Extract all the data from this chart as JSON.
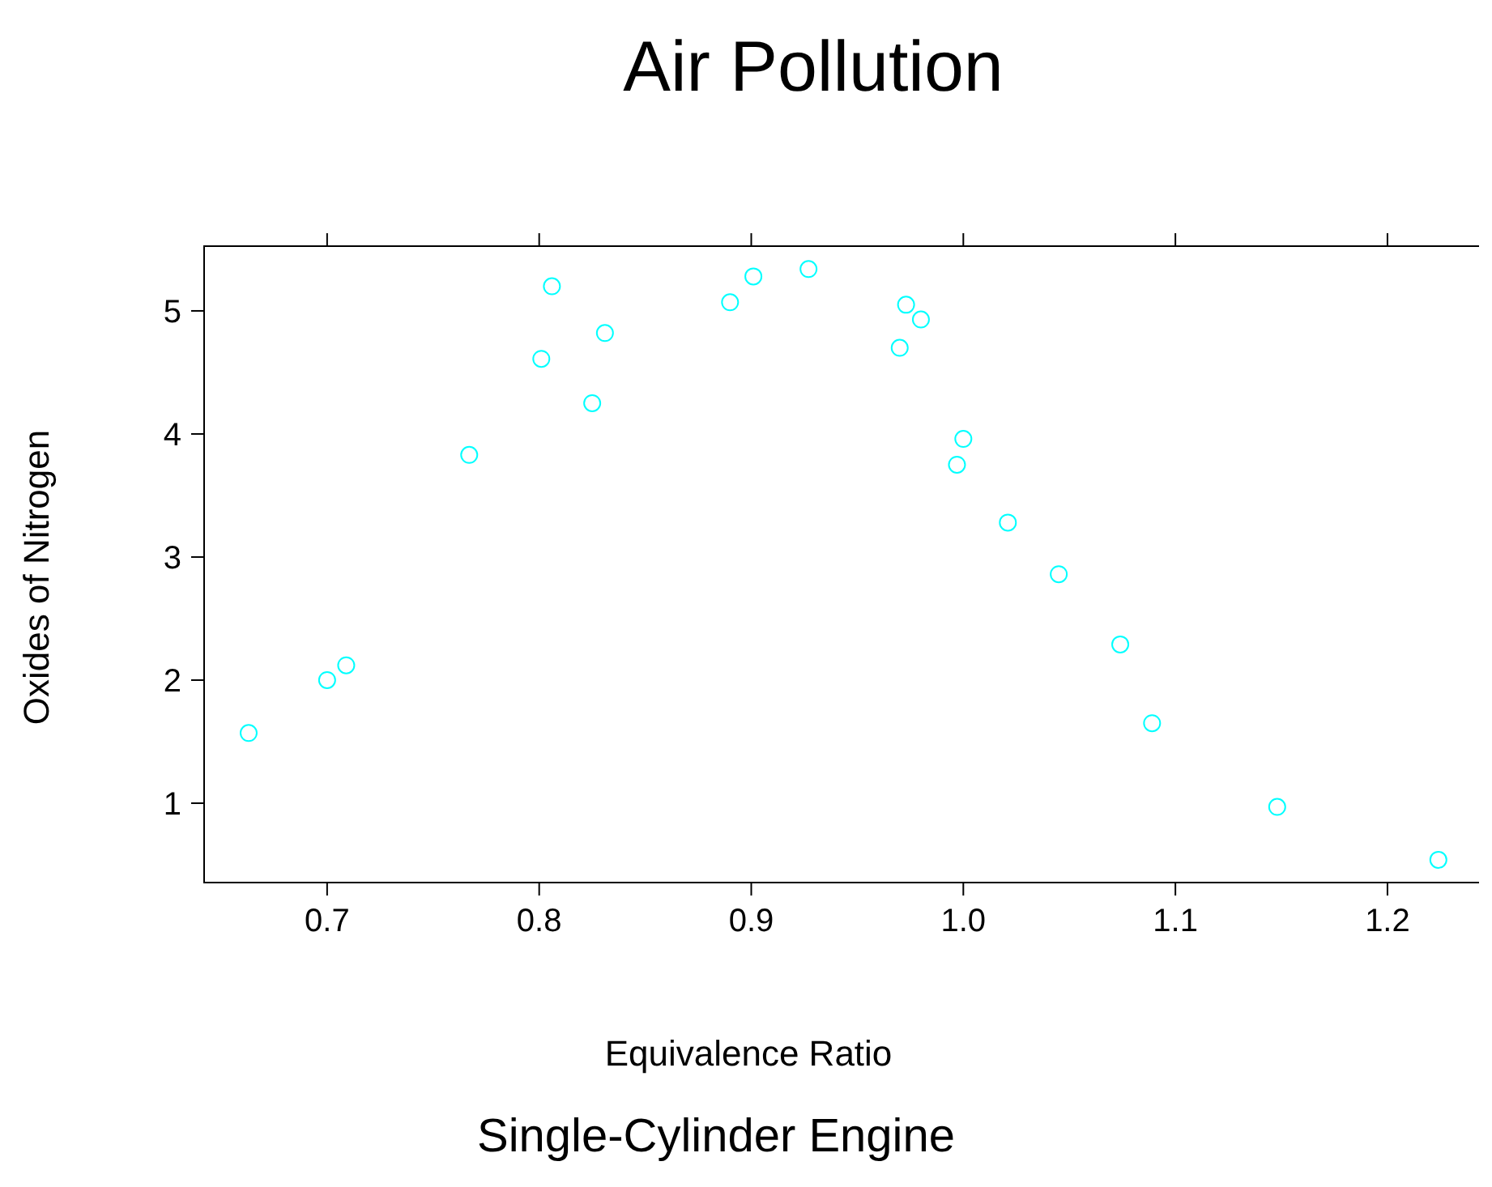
{
  "chart_data": {
    "type": "scatter",
    "title": "Air Pollution",
    "subtitle": "Single-Cylinder Engine",
    "xlabel": "Equivalence Ratio",
    "ylabel": "Oxides of Nitrogen",
    "x": [
      0.663,
      0.7,
      0.709,
      0.767,
      0.801,
      0.806,
      0.825,
      0.831,
      0.89,
      0.901,
      0.927,
      0.97,
      0.973,
      0.98,
      0.997,
      1.0,
      1.021,
      1.045,
      1.074,
      1.089,
      1.148,
      1.224
    ],
    "series": [
      {
        "color": "#00ffff",
        "values": [
          1.57,
          2.0,
          2.12,
          3.83,
          4.61,
          5.2,
          4.25,
          4.82,
          5.07,
          5.28,
          5.34,
          4.7,
          5.05,
          4.93,
          3.75,
          3.96,
          3.28,
          2.86,
          2.29,
          1.65,
          0.97,
          0.54
        ]
      }
    ],
    "xlim": [
      0.642,
      1.247
    ],
    "ylim": [
      0.355,
      5.526
    ],
    "xticks": [
      0.7,
      0.8,
      0.9,
      {
        "value": 1,
        "label": "1.0"
      },
      1.1,
      1.2
    ],
    "yticks": [
      1,
      2,
      3,
      4,
      5
    ],
    "marker": "circle",
    "grid": false
  }
}
